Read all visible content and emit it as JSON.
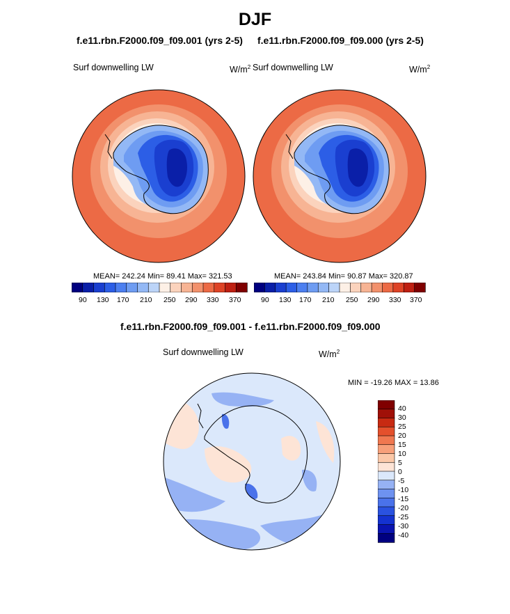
{
  "season": "DJF",
  "units_base": "W/m",
  "units_exp": "2",
  "panels": [
    {
      "title": "f.e11.rbn.F2000.f09_f09.001 (yrs 2-5)",
      "variable": "Surf downwelling LW",
      "stats": "MEAN= 242.24  Min=  89.41  Max= 321.53",
      "ticks": [
        "90",
        "130",
        "170",
        "210",
        "250",
        "290",
        "330",
        "370"
      ]
    },
    {
      "title": "f.e11.rbn.F2000.f09_f09.000 (yrs 2-5)",
      "variable": "Surf downwelling LW",
      "stats": "MEAN= 243.84  Min=  90.87  Max= 320.87",
      "ticks": [
        "90",
        "130",
        "170",
        "210",
        "250",
        "290",
        "330",
        "370"
      ]
    }
  ],
  "diff": {
    "title": "f.e11.rbn.F2000.f09_f09.001 - f.e11.rbn.F2000.f09_f09.000",
    "variable": "Surf downwelling LW",
    "stats": "MIN = -19.26 MAX =  13.86",
    "ticks": [
      "40",
      "30",
      "25",
      "20",
      "15",
      "10",
      "5",
      "0",
      "-5",
      "-10",
      "-15",
      "-20",
      "-25",
      "-30",
      "-40"
    ]
  },
  "chart_data": [
    {
      "type": "heatmap",
      "title": "f.e11.rbn.F2000.f09_f09.001 (yrs 2-5)",
      "variable": "Surf downwelling LW",
      "units": "W/m2",
      "projection": "south polar stereographic",
      "mean": 242.24,
      "min": 89.41,
      "max": 321.53,
      "levels": [
        90,
        110,
        130,
        150,
        170,
        190,
        210,
        230,
        250,
        270,
        290,
        310,
        330,
        350,
        370
      ],
      "colors": [
        "#00007f",
        "#0a1fa8",
        "#1a3fd0",
        "#2c5ee6",
        "#4c7ff0",
        "#6e9cf2",
        "#93b8f5",
        "#bcd4f8",
        "#fdf0e6",
        "#fbd3bd",
        "#f7b494",
        "#f2916c",
        "#ec6a45",
        "#de4326",
        "#bf2012",
        "#7f0000"
      ]
    },
    {
      "type": "heatmap",
      "title": "f.e11.rbn.F2000.f09_f09.000 (yrs 2-5)",
      "variable": "Surf downwelling LW",
      "units": "W/m2",
      "projection": "south polar stereographic",
      "mean": 243.84,
      "min": 90.87,
      "max": 320.87,
      "levels": [
        90,
        110,
        130,
        150,
        170,
        190,
        210,
        230,
        250,
        270,
        290,
        310,
        330,
        350,
        370
      ],
      "colors": [
        "#00007f",
        "#0a1fa8",
        "#1a3fd0",
        "#2c5ee6",
        "#4c7ff0",
        "#6e9cf2",
        "#93b8f5",
        "#bcd4f8",
        "#fdf0e6",
        "#fbd3bd",
        "#f7b494",
        "#f2916c",
        "#ec6a45",
        "#de4326",
        "#bf2012",
        "#7f0000"
      ]
    },
    {
      "type": "heatmap",
      "title": "f.e11.rbn.F2000.f09_f09.001 - f.e11.rbn.F2000.f09_f09.000",
      "variable": "Surf downwelling LW",
      "units": "W/m2",
      "projection": "south polar stereographic",
      "min": -19.26,
      "max": 13.86,
      "levels": [
        -40,
        -30,
        -25,
        -20,
        -15,
        -10,
        -5,
        0,
        5,
        10,
        15,
        20,
        25,
        30,
        40
      ],
      "colors": [
        "#000080",
        "#0a14b0",
        "#1432d0",
        "#2a52e0",
        "#4a72ea",
        "#6e92f0",
        "#96b2f4",
        "#dbe8fb",
        "#fde4d6",
        "#fbc8a8",
        "#f7a07a",
        "#f07850",
        "#e4502c",
        "#c82a12",
        "#a01008",
        "#800000"
      ]
    }
  ]
}
